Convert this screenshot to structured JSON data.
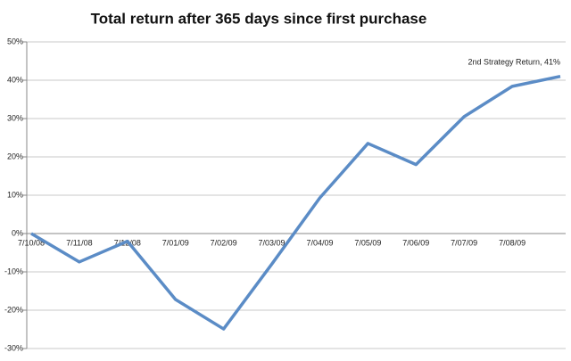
{
  "chart_data": {
    "type": "line",
    "title": "Total return after 365 days since first purchase",
    "categories": [
      "7/10/08",
      "7/11/08",
      "7/12/08",
      "7/01/09",
      "7/02/09",
      "7/03/09",
      "7/04/09",
      "7/05/09",
      "7/06/09",
      "7/07/09",
      "7/08/09",
      null
    ],
    "series": [
      {
        "color": "#5b8cc6",
        "values": [
          0,
          -7.4,
          -2,
          -17.2,
          -24.9,
          -8,
          9.3,
          23.5,
          18,
          30.5,
          38.4,
          41
        ]
      }
    ],
    "ylim": [
      -30,
      50
    ],
    "yticks": [
      {
        "value": -30,
        "label": "-30%"
      },
      {
        "value": -20,
        "label": "-20%"
      },
      {
        "value": -10,
        "label": "-10%"
      },
      {
        "value": 0,
        "label": "0%"
      },
      {
        "value": 10,
        "label": "10%"
      },
      {
        "value": 20,
        "label": "20%"
      },
      {
        "value": 30,
        "label": "30%"
      },
      {
        "value": 40,
        "label": "40%"
      },
      {
        "value": 50,
        "label": "50%"
      }
    ],
    "grid": true,
    "annotation": "2nd Strategy Return, 41%"
  }
}
